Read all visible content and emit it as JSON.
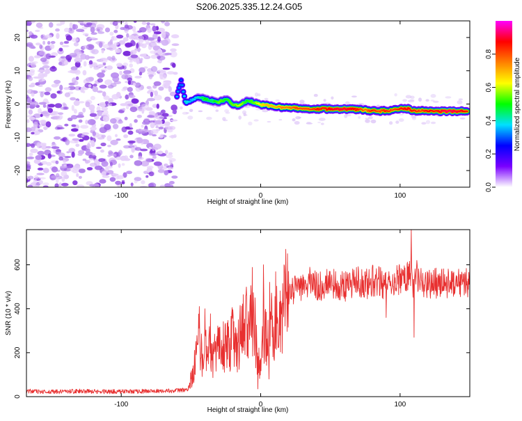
{
  "figure": {
    "title": "S206.2025.335.12.24.G05"
  },
  "chart_data": [
    {
      "type": "heatmap",
      "title": "",
      "xlabel": "Height of straight line (km)",
      "ylabel": "Frequency (Hz)",
      "xlim": [
        -168,
        150
      ],
      "ylim": [
        -25,
        25
      ],
      "xticks": [
        {
          "value": -100,
          "label": "-100"
        },
        {
          "value": 0,
          "label": "0"
        },
        {
          "value": 100,
          "label": "100"
        }
      ],
      "yticks": [
        {
          "value": 20,
          "label": "20"
        },
        {
          "value": 10,
          "label": "10"
        },
        {
          "value": 0,
          "label": "0"
        },
        {
          "value": -10,
          "label": "-10"
        },
        {
          "value": -20,
          "label": "-20"
        }
      ],
      "noise_region_x": [
        -168,
        -61
      ],
      "noise_color": "#7c2cdb",
      "signal_ridge": [
        {
          "x": -60,
          "f": 2.5,
          "a": 0.35
        },
        {
          "x": -57,
          "f": 7.0,
          "a": 0.3
        },
        {
          "x": -54,
          "f": 0.5,
          "a": 0.4
        },
        {
          "x": -50,
          "f": 1.0,
          "a": 0.35
        },
        {
          "x": -45,
          "f": 2.0,
          "a": 0.4
        },
        {
          "x": -40,
          "f": 1.5,
          "a": 0.5
        },
        {
          "x": -35,
          "f": 1.0,
          "a": 0.45
        },
        {
          "x": -30,
          "f": 0.5,
          "a": 0.55
        },
        {
          "x": -25,
          "f": 1.5,
          "a": 0.5
        },
        {
          "x": -20,
          "f": 0.0,
          "a": 0.55
        },
        {
          "x": -15,
          "f": -0.5,
          "a": 0.6
        },
        {
          "x": -10,
          "f": 1.0,
          "a": 0.5
        },
        {
          "x": -5,
          "f": 0.5,
          "a": 0.55
        },
        {
          "x": 0,
          "f": -0.2,
          "a": 0.65
        },
        {
          "x": 5,
          "f": -0.5,
          "a": 0.7
        },
        {
          "x": 10,
          "f": -0.8,
          "a": 0.7
        },
        {
          "x": 15,
          "f": -1.0,
          "a": 0.75
        },
        {
          "x": 20,
          "f": -1.2,
          "a": 0.75
        },
        {
          "x": 25,
          "f": -1.2,
          "a": 0.8
        },
        {
          "x": 30,
          "f": -1.3,
          "a": 0.8
        },
        {
          "x": 35,
          "f": -1.4,
          "a": 0.8
        },
        {
          "x": 40,
          "f": -1.4,
          "a": 0.85
        },
        {
          "x": 45,
          "f": -1.5,
          "a": 0.85
        },
        {
          "x": 50,
          "f": -1.5,
          "a": 0.88
        },
        {
          "x": 55,
          "f": -1.5,
          "a": 0.9
        },
        {
          "x": 60,
          "f": -1.5,
          "a": 0.9
        },
        {
          "x": 65,
          "f": -1.5,
          "a": 0.88
        },
        {
          "x": 70,
          "f": -1.6,
          "a": 0.85
        },
        {
          "x": 75,
          "f": -1.8,
          "a": 0.75
        },
        {
          "x": 80,
          "f": -2.0,
          "a": 0.85
        },
        {
          "x": 85,
          "f": -2.2,
          "a": 0.8
        },
        {
          "x": 90,
          "f": -2.0,
          "a": 0.85
        },
        {
          "x": 95,
          "f": -1.8,
          "a": 0.8
        },
        {
          "x": 100,
          "f": -1.5,
          "a": 0.85
        },
        {
          "x": 105,
          "f": -1.4,
          "a": 0.88
        },
        {
          "x": 110,
          "f": -2.0,
          "a": 0.85
        },
        {
          "x": 115,
          "f": -2.0,
          "a": 0.8
        },
        {
          "x": 120,
          "f": -2.0,
          "a": 0.88
        },
        {
          "x": 125,
          "f": -2.1,
          "a": 0.85
        },
        {
          "x": 130,
          "f": -2.2,
          "a": 0.9
        },
        {
          "x": 135,
          "f": -2.2,
          "a": 0.92
        },
        {
          "x": 140,
          "f": -2.2,
          "a": 0.9
        },
        {
          "x": 145,
          "f": -2.2,
          "a": 0.88
        },
        {
          "x": 148,
          "f": -2.2,
          "a": 0.85
        }
      ],
      "colorbar": {
        "label": "Normalized spectral amplitude",
        "range": [
          0,
          1
        ],
        "ticks": [
          {
            "value": 0.0,
            "label": "0.0"
          },
          {
            "value": 0.2,
            "label": "0.2"
          },
          {
            "value": 0.4,
            "label": "0.4"
          },
          {
            "value": 0.6,
            "label": "0.6"
          },
          {
            "value": 0.8,
            "label": "0.8"
          }
        ],
        "stops": [
          "#ffffff",
          "#7a00ff",
          "#0000ff",
          "#00e0ff",
          "#00ff00",
          "#ffff00",
          "#ff8000",
          "#ff0000",
          "#ff00ff"
        ]
      }
    },
    {
      "type": "line",
      "title": "",
      "xlabel": "Height of straight line (km)",
      "ylabel": "SNR (10 * v/v)",
      "xlim": [
        -168,
        150
      ],
      "ylim": [
        0,
        760
      ],
      "xticks": [
        {
          "value": -100,
          "label": "-100"
        },
        {
          "value": 0,
          "label": "0"
        },
        {
          "value": 100,
          "label": "100"
        }
      ],
      "yticks": [
        {
          "value": 0,
          "label": "0"
        },
        {
          "value": 200,
          "label": "200"
        },
        {
          "value": 400,
          "label": "400"
        },
        {
          "value": 600,
          "label": "600"
        }
      ],
      "line_color": "#e83030",
      "series": [
        {
          "name": "SNR",
          "x": [
            -168,
            -150,
            -130,
            -110,
            -90,
            -70,
            -52,
            -50,
            -48,
            -46,
            -44,
            -42,
            -40,
            -38,
            -36,
            -34,
            -32,
            -30,
            -28,
            -26,
            -24,
            -22,
            -20,
            -18,
            -16,
            -14,
            -12,
            -10,
            -8,
            -6,
            -4,
            -2,
            0,
            2,
            4,
            6,
            8,
            10,
            12,
            14,
            16,
            18,
            20,
            22,
            25,
            30,
            35,
            40,
            45,
            50,
            55,
            60,
            65,
            70,
            75,
            80,
            85,
            90,
            95,
            100,
            105,
            108,
            110,
            112,
            115,
            120,
            125,
            130,
            135,
            140,
            145,
            150
          ],
          "values": [
            25,
            22,
            25,
            23,
            24,
            25,
            30,
            80,
            120,
            200,
            280,
            160,
            230,
            150,
            260,
            170,
            230,
            200,
            260,
            210,
            250,
            230,
            280,
            220,
            260,
            280,
            320,
            330,
            300,
            380,
            250,
            180,
            120,
            320,
            300,
            340,
            330,
            360,
            380,
            400,
            420,
            450,
            460,
            480,
            500,
            510,
            520,
            510,
            500,
            520,
            510,
            500,
            520,
            520,
            510,
            530,
            520,
            510,
            520,
            530,
            540,
            560,
            500,
            530,
            520,
            510,
            520,
            510,
            515,
            520,
            510,
            520
          ]
        }
      ],
      "spikes": [
        {
          "x": -44,
          "v": 410
        },
        {
          "x": -40,
          "v": 400
        },
        {
          "x": -16,
          "v": 350
        },
        {
          "x": -4,
          "v": 450
        },
        {
          "x": -2,
          "v": 35
        },
        {
          "x": 2,
          "v": 600
        },
        {
          "x": 6,
          "v": 80
        },
        {
          "x": 20,
          "v": 570
        },
        {
          "x": 90,
          "v": 360
        },
        {
          "x": 108,
          "v": 760
        },
        {
          "x": 110,
          "v": 270
        },
        {
          "x": 112,
          "v": 620
        }
      ]
    }
  ]
}
